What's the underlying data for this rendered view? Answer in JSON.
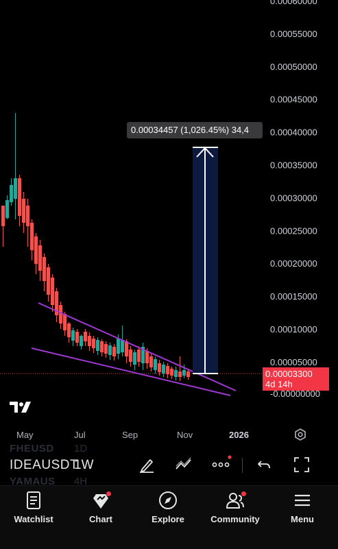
{
  "chart": {
    "price_axis": [
      "0.00060000",
      "0.00055000",
      "0.00050000",
      "0.00045000",
      "0.00040000",
      "0.00035000",
      "0.00030000",
      "0.00025000",
      "0.00020000",
      "0.00015000",
      "0.00010000",
      "0.00005000",
      "-0.00000000"
    ],
    "date_axis": [
      "May",
      "Jul",
      "Sep",
      "Nov",
      "2026"
    ],
    "tooltip": "0.00034457 (1,026.45%) 34,4",
    "current_price": "0.00003300",
    "countdown": "4d 14h",
    "colors": {
      "up": "#26a69a",
      "down": "#ef5350",
      "wedge": "#a139d4",
      "measure_fill": "#0d1a40",
      "accent": "#f23645"
    }
  },
  "toolbar": {
    "symbol_prev": "FHEUSD",
    "symbol": "IDEAUSDT",
    "symbol_next": "YAMAUS",
    "interval_prev": "1D",
    "interval": "1W",
    "interval_next": "4H",
    "icons": [
      "draw-pen-icon",
      "indicators-icon",
      "more-icon",
      "undo-icon",
      "fullscreen-icon"
    ]
  },
  "nav": {
    "items": [
      {
        "label": "Watchlist",
        "icon": "watchlist-icon"
      },
      {
        "label": "Chart",
        "icon": "chart-icon"
      },
      {
        "label": "Explore",
        "icon": "compass-icon"
      },
      {
        "label": "Community",
        "icon": "community-icon"
      },
      {
        "label": "Menu",
        "icon": "menu-icon"
      }
    ]
  }
}
